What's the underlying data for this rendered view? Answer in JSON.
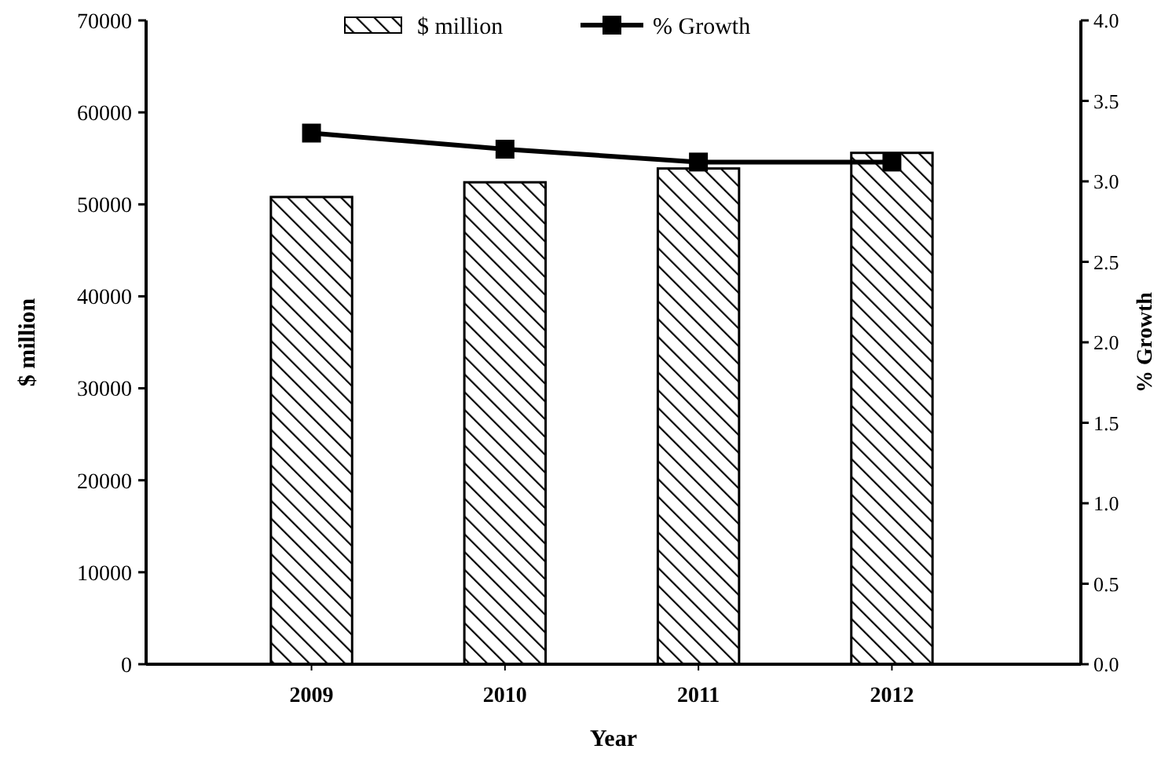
{
  "chart_data": {
    "type": "bar",
    "xlabel": "Year",
    "ylabel": "$ million",
    "y2label": "% Growth",
    "categories": [
      "2009",
      "2010",
      "2011",
      "2012"
    ],
    "series": [
      {
        "name": "$ million",
        "color": "#000000",
        "values": [
          50800,
          52400,
          53900,
          55600
        ]
      },
      {
        "name": "% Growth",
        "type": "line",
        "axis": "y2",
        "color": "#000000",
        "values": [
          3.3,
          3.2,
          3.12,
          3.12
        ],
        "marker": "square",
        "line_style": "solid"
      }
    ],
    "ylim": [
      0,
      70000
    ],
    "yticks": [
      0,
      10000,
      20000,
      30000,
      40000,
      50000,
      60000,
      70000
    ],
    "y2lim": [
      0,
      4
    ],
    "y2ticks": [
      {
        "value": 0,
        "label": "0.0"
      },
      {
        "value": 0.5,
        "label": "0.5"
      },
      {
        "value": 1,
        "label": "1.0"
      },
      {
        "value": 1.5,
        "label": "1.5"
      },
      {
        "value": 2,
        "label": "2.0"
      },
      {
        "value": 2.5,
        "label": "2.5"
      },
      {
        "value": 3,
        "label": "3.0"
      },
      {
        "value": 3.5,
        "label": "3.5"
      },
      {
        "value": 4,
        "label": "4.0"
      }
    ],
    "legend": "top",
    "grid": false
  }
}
